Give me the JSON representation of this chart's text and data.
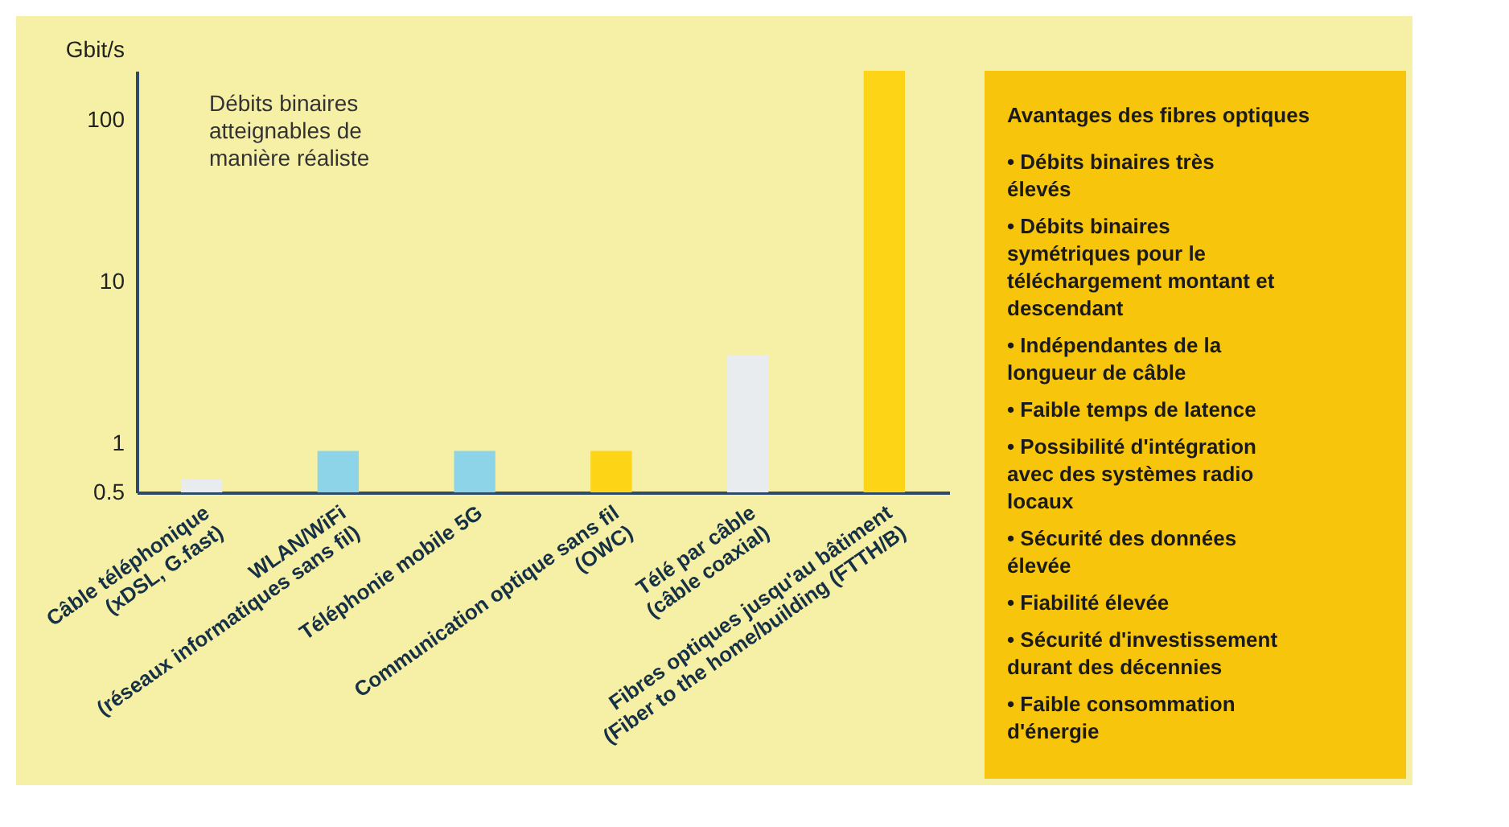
{
  "chart_data": {
    "type": "bar",
    "ylabel": "Gbit/s",
    "categories": [
      "Câble téléphonique (xDSL, G.fast)",
      "WLAN/WiFi (réseaux informatiques sans fil)",
      "Téléphonie mobile 5G",
      "Communication optique sans fil (OWC)",
      "Télé par câble (câble coaxial)",
      "Fibres optiques jusqu'au bâtiment (Fiber to the home/building (FTTH/B)"
    ],
    "values": [
      0.6,
      0.9,
      0.9,
      0.9,
      3.5,
      200
    ],
    "colors": [
      "#e9ecee",
      "#8ed4e8",
      "#8ed4e8",
      "#fdd416",
      "#e9ecee",
      "#fdd416"
    ],
    "log": true,
    "ylim": [
      0.5,
      200
    ],
    "yticks": [
      0.5,
      1,
      10,
      100
    ],
    "grid": false,
    "annotations": [
      "Débits binaires atteignables de manière réaliste",
      "Avantages des fibres optiques",
      "• Débits binaires très élevés",
      "• Débits binaires symétriques pour le téléchargement montant et descendant",
      "• Indépendantes de la longueur de câble",
      "• Faible temps de latence",
      "• Possibilité d'intégration avec des systèmes radio locaux",
      "• Sécurité des données élevée",
      "• Fiabilité élevée",
      "• Sécurité d'investissement durant des décennies",
      "• Faible consommation d'énergie"
    ]
  }
}
